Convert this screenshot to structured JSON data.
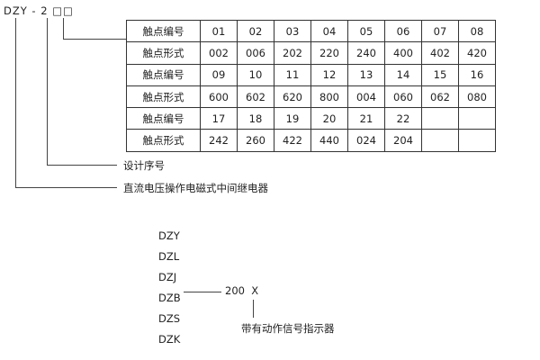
{
  "model_code": "DZY - 2 □□",
  "table": {
    "rows": [
      {
        "label": "触点编号",
        "cells": [
          "01",
          "02",
          "03",
          "04",
          "05",
          "06",
          "07",
          "08"
        ]
      },
      {
        "label": "触点形式",
        "cells": [
          "002",
          "006",
          "202",
          "220",
          "240",
          "400",
          "402",
          "420"
        ]
      },
      {
        "label": "触点编号",
        "cells": [
          "09",
          "10",
          "11",
          "12",
          "13",
          "14",
          "15",
          "16"
        ]
      },
      {
        "label": "触点形式",
        "cells": [
          "600",
          "602",
          "620",
          "800",
          "004",
          "060",
          "062",
          "080"
        ]
      },
      {
        "label": "触点编号",
        "cells": [
          "17",
          "18",
          "19",
          "20",
          "21",
          "22",
          "",
          ""
        ]
      },
      {
        "label": "触点形式",
        "cells": [
          "242",
          "260",
          "422",
          "440",
          "024",
          "204",
          "",
          ""
        ]
      }
    ]
  },
  "labels": {
    "design_serial": "设计序号",
    "relay_type": "直流电压操作电磁式中间继电器"
  },
  "series": [
    "DZY",
    "DZL",
    "DZJ",
    "DZB",
    "DZS",
    "DZK"
  ],
  "suffix": "200  X",
  "indicator_label": "带有动作信号指示器"
}
